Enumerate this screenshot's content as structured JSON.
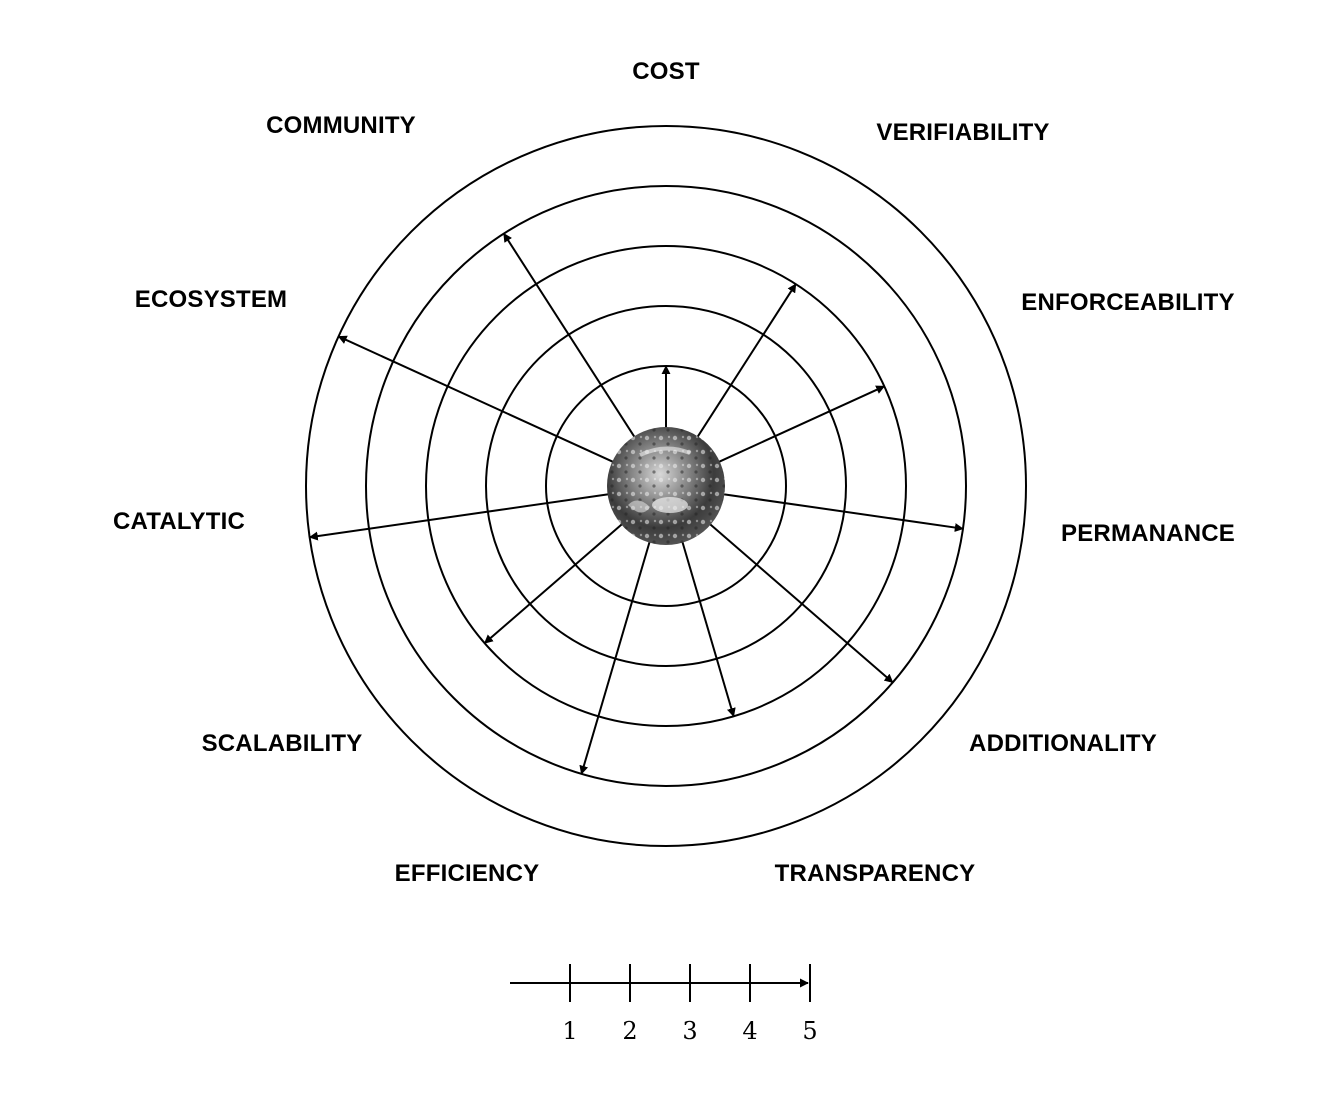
{
  "chart_data": {
    "type": "radial-arrow",
    "center_image": "earth",
    "rings": [
      1,
      2,
      3,
      4,
      5
    ],
    "axes": [
      {
        "label": "COST",
        "value": 1
      },
      {
        "label": "VERIFIABILITY",
        "value": 3
      },
      {
        "label": "ENFORCEABILITY",
        "value": 3
      },
      {
        "label": "PERMANANCE",
        "value": 4
      },
      {
        "label": "ADDITIONALITY",
        "value": 4
      },
      {
        "label": "TRANSPARENCY",
        "value": 3
      },
      {
        "label": "EFFICIENCY",
        "value": 4
      },
      {
        "label": "SCALABILITY",
        "value": 3
      },
      {
        "label": "CATALYTIC",
        "value": 5
      },
      {
        "label": "ECOSYSTEM",
        "value": 5
      },
      {
        "label": "COMMUNITY",
        "value": 4
      }
    ],
    "scale_ticks": [
      "1",
      "2",
      "3",
      "4",
      "5"
    ],
    "colors": {
      "stroke": "#000000",
      "background": "#ffffff"
    }
  }
}
